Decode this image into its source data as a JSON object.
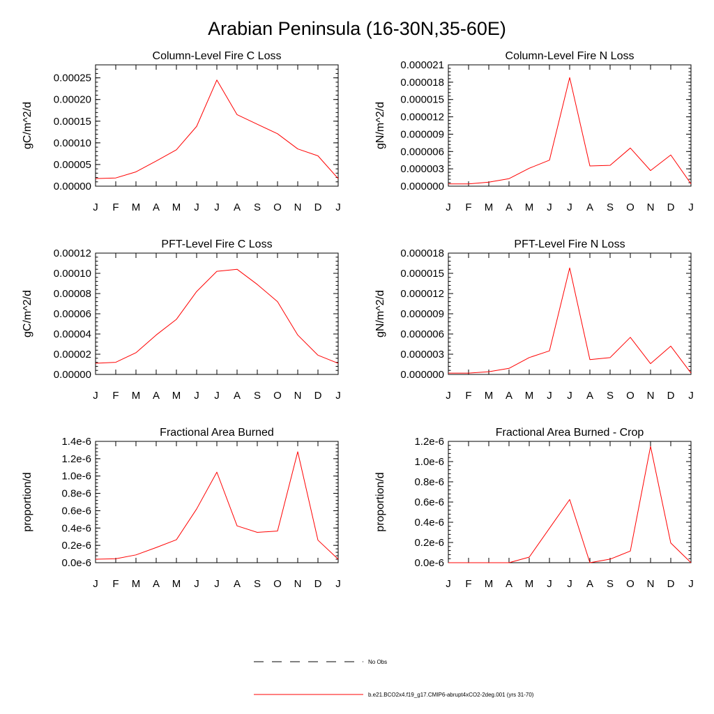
{
  "figure": {
    "title": "Arabian Peninsula (16-30N,35-60E)",
    "line_color": "#ff0000",
    "axis_color": "#000000"
  },
  "legend": {
    "items": [
      {
        "label": "No Obs",
        "style": "dashed",
        "color": "#000000"
      },
      {
        "label": "b.e21.BCO2x4.f19_g17.CMIP6-abrupt4xCO2-2deg.001 (yrs 31-70)",
        "style": "solid",
        "color": "#ff0000"
      }
    ]
  },
  "chart_data": [
    {
      "type": "line",
      "title": "Column-Level Fire C Loss",
      "xlabel": "",
      "ylabel": "gC/m^2/d",
      "categories": [
        "J",
        "F",
        "M",
        "A",
        "M",
        "J",
        "J",
        "A",
        "S",
        "O",
        "N",
        "D",
        "J"
      ],
      "ylim": [
        0,
        0.00028
      ],
      "yticks": [
        "0.00000",
        "0.00005",
        "0.00010",
        "0.00015",
        "0.00020",
        "0.00025"
      ],
      "ytick_values": [
        0,
        5e-05,
        0.0001,
        0.00015,
        0.0002,
        0.00025
      ],
      "series": [
        {
          "name": "b.e21.BCO2x4.f19_g17.CMIP6-abrupt4xCO2-2deg.001 (yrs 31-70)",
          "values": [
            1.75e-05,
            1.9e-05,
            3.3e-05,
            5.8e-05,
            8.4e-05,
            0.000138,
            0.000245,
            0.000165,
            0.000143,
            0.000121,
            8.6e-05,
            7e-05,
            1.75e-05
          ]
        }
      ]
    },
    {
      "type": "line",
      "title": "Column-Level Fire N Loss",
      "xlabel": "",
      "ylabel": "gN/m^2/d",
      "categories": [
        "J",
        "F",
        "M",
        "A",
        "M",
        "J",
        "J",
        "A",
        "S",
        "O",
        "N",
        "D",
        "J"
      ],
      "ylim": [
        0,
        2.1e-05
      ],
      "yticks": [
        "0.000000",
        "0.000003",
        "0.000006",
        "0.000009",
        "0.000012",
        "0.000015",
        "0.000018",
        "0.000021"
      ],
      "ytick_values": [
        0,
        3e-06,
        6e-06,
        9e-06,
        1.2e-05,
        1.5e-05,
        1.8e-05,
        2.1e-05
      ],
      "series": [
        {
          "name": "b.e21.BCO2x4.f19_g17.CMIP6-abrupt4xCO2-2deg.001 (yrs 31-70)",
          "values": [
            4e-07,
            4e-07,
            7e-07,
            1.3e-06,
            3.1e-06,
            4.5e-06,
            1.88e-05,
            3.5e-06,
            3.6e-06,
            6.6e-06,
            2.7e-06,
            5.4e-06,
            4e-07
          ]
        }
      ]
    },
    {
      "type": "line",
      "title": "PFT-Level Fire C Loss",
      "xlabel": "",
      "ylabel": "gC/m^2/d",
      "categories": [
        "J",
        "F",
        "M",
        "A",
        "M",
        "J",
        "J",
        "A",
        "S",
        "O",
        "N",
        "D",
        "J"
      ],
      "ylim": [
        0,
        0.00012
      ],
      "yticks": [
        "0.00000",
        "0.00002",
        "0.00004",
        "0.00006",
        "0.00008",
        "0.00010",
        "0.00012"
      ],
      "ytick_values": [
        0,
        2e-05,
        4e-05,
        6e-05,
        8e-05,
        0.0001,
        0.00012
      ],
      "series": [
        {
          "name": "b.e21.BCO2x4.f19_g17.CMIP6-abrupt4xCO2-2deg.001 (yrs 31-70)",
          "values": [
            1.1e-05,
            1.2e-05,
            2.15e-05,
            3.9e-05,
            5.45e-05,
            8.2e-05,
            0.000102,
            0.000104,
            8.9e-05,
            7.2e-05,
            3.9e-05,
            1.9e-05,
            1.1e-05
          ]
        }
      ]
    },
    {
      "type": "line",
      "title": "PFT-Level Fire N Loss",
      "xlabel": "",
      "ylabel": "gN/m^2/d",
      "categories": [
        "J",
        "F",
        "M",
        "A",
        "M",
        "J",
        "J",
        "A",
        "S",
        "O",
        "N",
        "D",
        "J"
      ],
      "ylim": [
        0,
        1.8e-05
      ],
      "yticks": [
        "0.000000",
        "0.000003",
        "0.000006",
        "0.000009",
        "0.000012",
        "0.000015",
        "0.000018"
      ],
      "ytick_values": [
        0,
        3e-06,
        6e-06,
        9e-06,
        1.2e-05,
        1.5e-05,
        1.8e-05
      ],
      "series": [
        {
          "name": "b.e21.BCO2x4.f19_g17.CMIP6-abrupt4xCO2-2deg.001 (yrs 31-70)",
          "values": [
            2e-07,
            2e-07,
            4e-07,
            9e-07,
            2.5e-06,
            3.5e-06,
            1.58e-05,
            2.2e-06,
            2.5e-06,
            5.5e-06,
            1.6e-06,
            4.2e-06,
            2e-07
          ]
        }
      ]
    },
    {
      "type": "line",
      "title": "Fractional Area Burned",
      "xlabel": "",
      "ylabel": "proportion/d",
      "categories": [
        "J",
        "F",
        "M",
        "A",
        "M",
        "J",
        "J",
        "A",
        "S",
        "O",
        "N",
        "D",
        "J"
      ],
      "ylim": [
        0,
        1.4e-06
      ],
      "yticks": [
        "0.0e-6",
        "0.2e-6",
        "0.4e-6",
        "0.6e-6",
        "0.8e-6",
        "1.0e-6",
        "1.2e-6",
        "1.4e-6"
      ],
      "ytick_values": [
        0,
        2e-07,
        4e-07,
        6e-07,
        8e-07,
        1e-06,
        1.2e-06,
        1.4e-06
      ],
      "series": [
        {
          "name": "b.e21.BCO2x4.f19_g17.CMIP6-abrupt4xCO2-2deg.001 (yrs 31-70)",
          "values": [
            4e-08,
            4.5e-08,
            9e-08,
            1.75e-07,
            2.65e-07,
            6.2e-07,
            1.045e-06,
            4.25e-07,
            3.5e-07,
            3.65e-07,
            1.28e-06,
            2.6e-07,
            4e-08
          ]
        }
      ]
    },
    {
      "type": "line",
      "title": "Fractional Area Burned - Crop",
      "xlabel": "",
      "ylabel": "proportion/d",
      "categories": [
        "J",
        "F",
        "M",
        "A",
        "M",
        "J",
        "J",
        "A",
        "S",
        "O",
        "N",
        "D",
        "J"
      ],
      "ylim": [
        0,
        1.2e-06
      ],
      "yticks": [
        "0.0e-6",
        "0.2e-6",
        "0.4e-6",
        "0.6e-6",
        "0.8e-6",
        "1.0e-6",
        "1.2e-6"
      ],
      "ytick_values": [
        0,
        2e-07,
        4e-07,
        6e-07,
        8e-07,
        1e-06,
        1.2e-06
      ],
      "series": [
        {
          "name": "b.e21.BCO2x4.f19_g17.CMIP6-abrupt4xCO2-2deg.001 (yrs 31-70)",
          "values": [
            0,
            0,
            0,
            0,
            5.5e-08,
            3.4e-07,
            6.25e-07,
            0,
            3.5e-08,
            1.15e-07,
            1.15e-06,
            1.95e-07,
            0
          ]
        }
      ]
    }
  ]
}
